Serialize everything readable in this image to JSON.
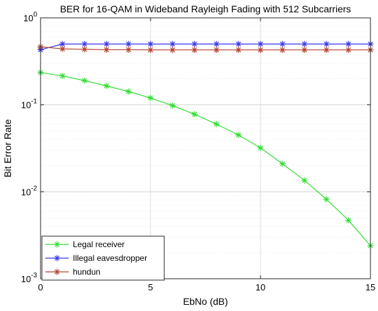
{
  "chart_data": {
    "type": "line",
    "title": "BER for 16-QAM in Wideband Rayleigh Fading with 512 Subcarriers",
    "xlabel": "EbNo (dB)",
    "ylabel": "Bit Error Rate",
    "xlim": [
      0,
      15
    ],
    "ylim": [
      0.001,
      1
    ],
    "yscale": "log",
    "grid": true,
    "legend_position": "bottom-left",
    "x": [
      0,
      1,
      2,
      3,
      4,
      5,
      6,
      7,
      8,
      9,
      10,
      11,
      12,
      13,
      14,
      15
    ],
    "xticks": [
      0,
      5,
      10,
      15
    ],
    "yticks": [
      {
        "value": 0.001,
        "exp": "-3"
      },
      {
        "value": 0.01,
        "exp": "-2"
      },
      {
        "value": 0.1,
        "exp": "-1"
      },
      {
        "value": 1,
        "exp": "0"
      }
    ],
    "series": [
      {
        "name": "Legal receiver",
        "color": "#33dd33",
        "values": [
          0.235,
          0.215,
          0.19,
          0.165,
          0.142,
          0.12,
          0.098,
          0.078,
          0.06,
          0.045,
          0.032,
          0.021,
          0.0135,
          0.0082,
          0.0047,
          0.0024
        ]
      },
      {
        "name": "Illegal eavesdropper",
        "color": "#3333ee",
        "values": [
          0.43,
          0.5,
          0.5,
          0.5,
          0.5,
          0.5,
          0.5,
          0.5,
          0.5,
          0.5,
          0.5,
          0.5,
          0.5,
          0.5,
          0.5,
          0.5
        ]
      },
      {
        "name": "hundun",
        "color": "#b2402b",
        "values": [
          0.465,
          0.44,
          0.435,
          0.43,
          0.43,
          0.428,
          0.428,
          0.428,
          0.428,
          0.428,
          0.428,
          0.428,
          0.428,
          0.428,
          0.428,
          0.428
        ]
      }
    ]
  }
}
